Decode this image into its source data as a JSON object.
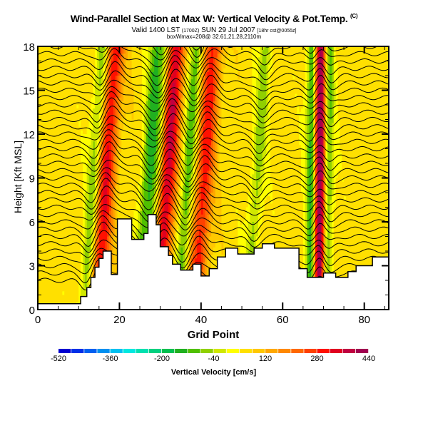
{
  "chart_data": {
    "type": "heatmap",
    "title": "Wind-Parallel Section at Max W: Vertical Velocity & Pot.Temp.",
    "title_tag": "(C)",
    "subtitle_main": "Valid 1400 LST",
    "subtitle_z": "(1700Z)",
    "subtitle_date": "SUN 29 Jul 2007",
    "subtitle_fcst": "[18hr cst@0055z]",
    "subtitle2": "boxWmax=208@ 32.61,21.28,2110m",
    "xlabel": "Grid Point",
    "ylabel": "Height [Kft MSL]",
    "xlim": [
      0,
      86
    ],
    "ylim": [
      0,
      18
    ],
    "xticks": [
      0,
      20,
      40,
      60,
      80
    ],
    "yticks": [
      0,
      3,
      6,
      9,
      12,
      15,
      18
    ],
    "colorbar": {
      "label": "Vertical Velocity [cm/s]",
      "min": -520,
      "max": 440,
      "step": 40,
      "tick_labels": [
        "-520",
        "-360",
        "-200",
        "-40",
        "120",
        "280",
        "440"
      ],
      "colors": [
        "#0000d0",
        "#0030e8",
        "#0060f0",
        "#0090f0",
        "#00c0f0",
        "#00e8e0",
        "#00e0b0",
        "#00d080",
        "#00c050",
        "#20b020",
        "#50c000",
        "#90d000",
        "#d0e800",
        "#ffff00",
        "#ffe000",
        "#ffc800",
        "#ffa800",
        "#ff8800",
        "#ff6800",
        "#ff4000",
        "#ff1000",
        "#e00020",
        "#c00040",
        "#a00050"
      ]
    },
    "updraft_cores_gridpoint": [
      16,
      31,
      40,
      69
    ],
    "downdraft_cores_gridpoint": [
      13,
      26,
      28,
      36,
      53,
      67,
      71
    ]
  }
}
